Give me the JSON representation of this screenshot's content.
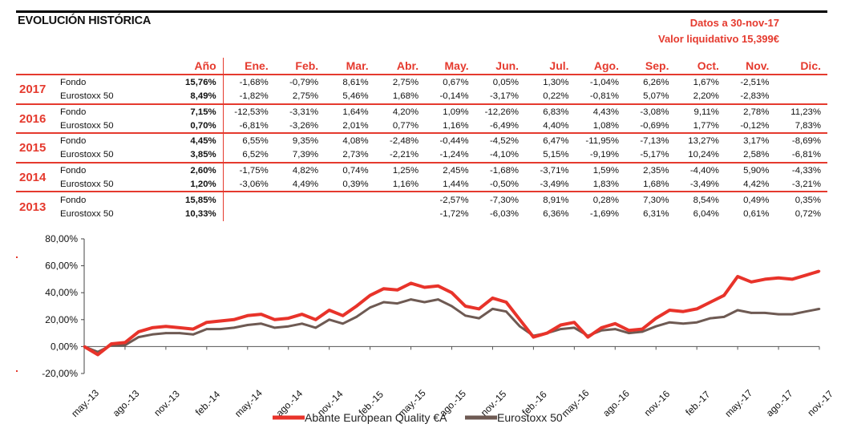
{
  "header": {
    "title": "EVOLUCIÓN HISTÓRICA",
    "date_label": "Datos a 30-nov-17",
    "nav_label": "Valor liquidativo 15,399€"
  },
  "table": {
    "columns": [
      "Año",
      "Ene.",
      "Feb.",
      "Mar.",
      "Abr.",
      "May.",
      "Jun.",
      "Jul.",
      "Ago.",
      "Sep.",
      "Oct.",
      "Nov.",
      "Dic."
    ],
    "years": [
      {
        "year": "2017",
        "rows": [
          {
            "label": "Fondo",
            "values": [
              "15,76%",
              "-1,68%",
              "-0,79%",
              "8,61%",
              "2,75%",
              "0,67%",
              "0,05%",
              "1,30%",
              "-1,04%",
              "6,26%",
              "1,67%",
              "-2,51%",
              ""
            ]
          },
          {
            "label": "Eurostoxx 50",
            "values": [
              "8,49%",
              "-1,82%",
              "2,75%",
              "5,46%",
              "1,68%",
              "-0,14%",
              "-3,17%",
              "0,22%",
              "-0,81%",
              "5,07%",
              "2,20%",
              "-2,83%",
              ""
            ]
          }
        ]
      },
      {
        "year": "2016",
        "rows": [
          {
            "label": "Fondo",
            "values": [
              "7,15%",
              "-12,53%",
              "-3,31%",
              "1,64%",
              "4,20%",
              "1,09%",
              "-12,26%",
              "6,83%",
              "4,43%",
              "-3,08%",
              "9,11%",
              "2,78%",
              "11,23%"
            ]
          },
          {
            "label": "Eurostoxx 50",
            "values": [
              "0,70%",
              "-6,81%",
              "-3,26%",
              "2,01%",
              "0,77%",
              "1,16%",
              "-6,49%",
              "4,40%",
              "1,08%",
              "-0,69%",
              "1,77%",
              "-0,12%",
              "7,83%"
            ]
          }
        ]
      },
      {
        "year": "2015",
        "rows": [
          {
            "label": "Fondo",
            "values": [
              "4,45%",
              "6,55%",
              "9,35%",
              "4,08%",
              "-2,48%",
              "-0,44%",
              "-4,52%",
              "6,47%",
              "-11,95%",
              "-7,13%",
              "13,27%",
              "3,17%",
              "-8,69%"
            ]
          },
          {
            "label": "Eurostoxx 50",
            "values": [
              "3,85%",
              "6,52%",
              "7,39%",
              "2,73%",
              "-2,21%",
              "-1,24%",
              "-4,10%",
              "5,15%",
              "-9,19%",
              "-5,17%",
              "10,24%",
              "2,58%",
              "-6,81%"
            ]
          }
        ]
      },
      {
        "year": "2014",
        "rows": [
          {
            "label": "Fondo",
            "values": [
              "2,60%",
              "-1,75%",
              "4,82%",
              "0,74%",
              "1,25%",
              "2,45%",
              "-1,68%",
              "-3,71%",
              "1,59%",
              "2,35%",
              "-4,40%",
              "5,90%",
              "-4,33%"
            ]
          },
          {
            "label": "Eurostoxx 50",
            "values": [
              "1,20%",
              "-3,06%",
              "4,49%",
              "0,39%",
              "1,16%",
              "1,44%",
              "-0,50%",
              "-3,49%",
              "1,83%",
              "1,68%",
              "-3,49%",
              "4,42%",
              "-3,21%"
            ]
          }
        ]
      },
      {
        "year": "2013",
        "rows": [
          {
            "label": "Fondo",
            "values": [
              "15,85%",
              "",
              "",
              "",
              "",
              "-2,57%",
              "-7,30%",
              "8,91%",
              "0,28%",
              "7,30%",
              "8,54%",
              "0,49%",
              "0,35%"
            ]
          },
          {
            "label": "Eurostoxx 50",
            "values": [
              "10,33%",
              "",
              "",
              "",
              "",
              "-1,72%",
              "-6,03%",
              "6,36%",
              "-1,69%",
              "6,31%",
              "6,04%",
              "0,61%",
              "0,72%"
            ]
          }
        ]
      }
    ]
  },
  "colors": {
    "accent": "#e53a2e",
    "fund": "#e8332a",
    "index": "#6e5a53"
  },
  "chart_data": {
    "type": "line",
    "ylim": [
      -20,
      80
    ],
    "y_ticks": [
      "-20,00%",
      "0,00%",
      "20,00%",
      "40,00%",
      "60,00%",
      "80,00%"
    ],
    "y_tick_values": [
      -20,
      0,
      20,
      40,
      60,
      80
    ],
    "x_tick_labels": [
      "may.-13",
      "ago.-13",
      "nov.-13",
      "feb.-14",
      "may.-14",
      "ago.-14",
      "nov.-14",
      "feb.-15",
      "may.-15",
      "ago.-15",
      "nov.-15",
      "feb.-16",
      "may.-16",
      "ago.-16",
      "nov.-16",
      "feb.-17",
      "may.-17",
      "ago.-17",
      "nov.-17"
    ],
    "x": [
      "may.-13",
      "jun.-13",
      "jul.-13",
      "ago.-13",
      "sep.-13",
      "oct.-13",
      "nov.-13",
      "dic.-13",
      "ene.-14",
      "feb.-14",
      "mar.-14",
      "abr.-14",
      "may.-14",
      "jun.-14",
      "jul.-14",
      "ago.-14",
      "sep.-14",
      "oct.-14",
      "nov.-14",
      "dic.-14",
      "ene.-15",
      "feb.-15",
      "mar.-15",
      "abr.-15",
      "may.-15",
      "jun.-15",
      "jul.-15",
      "ago.-15",
      "sep.-15",
      "oct.-15",
      "nov.-15",
      "dic.-15",
      "ene.-16",
      "feb.-16",
      "mar.-16",
      "abr.-16",
      "may.-16",
      "jun.-16",
      "jul.-16",
      "ago.-16",
      "sep.-16",
      "oct.-16",
      "nov.-16",
      "dic.-16",
      "ene.-17",
      "feb.-17",
      "mar.-17",
      "abr.-17",
      "may.-17",
      "jun.-17",
      "jul.-17",
      "ago.-17",
      "sep.-17",
      "oct.-17",
      "nov.-17"
    ],
    "series": [
      {
        "name": "Abante European Quality €A",
        "values": [
          0,
          -6,
          2,
          3,
          11,
          14,
          15,
          14,
          13,
          18,
          19,
          20,
          23,
          24,
          20,
          21,
          24,
          20,
          27,
          23,
          30,
          38,
          43,
          42,
          47,
          44,
          45,
          40,
          30,
          28,
          36,
          33,
          20,
          7,
          10,
          16,
          18,
          7,
          14,
          17,
          12,
          13,
          21,
          27,
          26,
          28,
          33,
          38,
          52,
          48,
          50,
          51,
          50,
          53,
          56
        ]
      },
      {
        "name": "Eurostoxx 50",
        "values": [
          0,
          -4,
          1,
          1,
          7,
          9,
          10,
          10,
          9,
          13,
          13,
          14,
          16,
          17,
          14,
          15,
          17,
          14,
          20,
          17,
          22,
          29,
          33,
          32,
          35,
          33,
          35,
          30,
          23,
          21,
          28,
          26,
          15,
          8,
          10,
          13,
          14,
          8,
          12,
          13,
          10,
          11,
          15,
          18,
          17,
          18,
          21,
          22,
          27,
          25,
          25,
          24,
          24,
          26,
          28
        ]
      }
    ],
    "legend_position": "bottom",
    "grid": false
  }
}
